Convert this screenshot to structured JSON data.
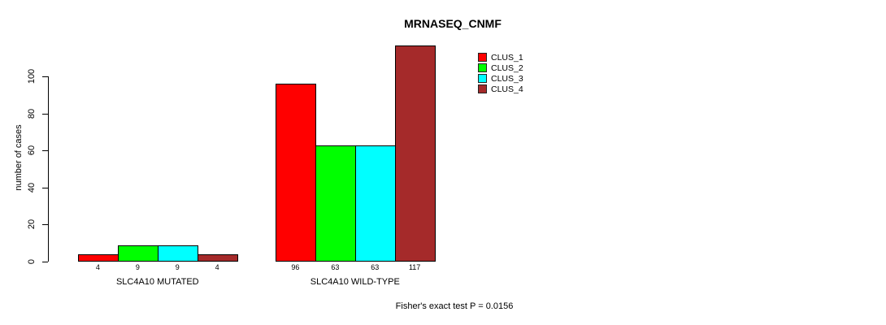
{
  "chart_data": {
    "type": "bar",
    "title": "MRNASEQ_CNMF",
    "ylabel": "number of cases",
    "xlabel": "",
    "groups": [
      "SLC4A10 MUTATED",
      "SLC4A10 WILD-TYPE"
    ],
    "series": [
      {
        "name": "CLUS_1",
        "color": "#ff0000",
        "values": [
          4,
          96
        ]
      },
      {
        "name": "CLUS_2",
        "color": "#00ff00",
        "values": [
          9,
          63
        ]
      },
      {
        "name": "CLUS_3",
        "color": "#00ffff",
        "values": [
          9,
          63
        ]
      },
      {
        "name": "CLUS_4",
        "color": "#a52a2a",
        "values": [
          4,
          117
        ]
      }
    ],
    "bar_value_labels": [
      [
        "4",
        "9",
        "9",
        "4"
      ],
      [
        "96",
        "63",
        "63",
        "117"
      ]
    ],
    "yticks": [
      "0",
      "20",
      "40",
      "60",
      "80",
      "100"
    ],
    "ylim": [
      0,
      100
    ],
    "grid": false,
    "legend_position": "top-right",
    "annotation": "Fisher's exact test P = 0.0156"
  }
}
